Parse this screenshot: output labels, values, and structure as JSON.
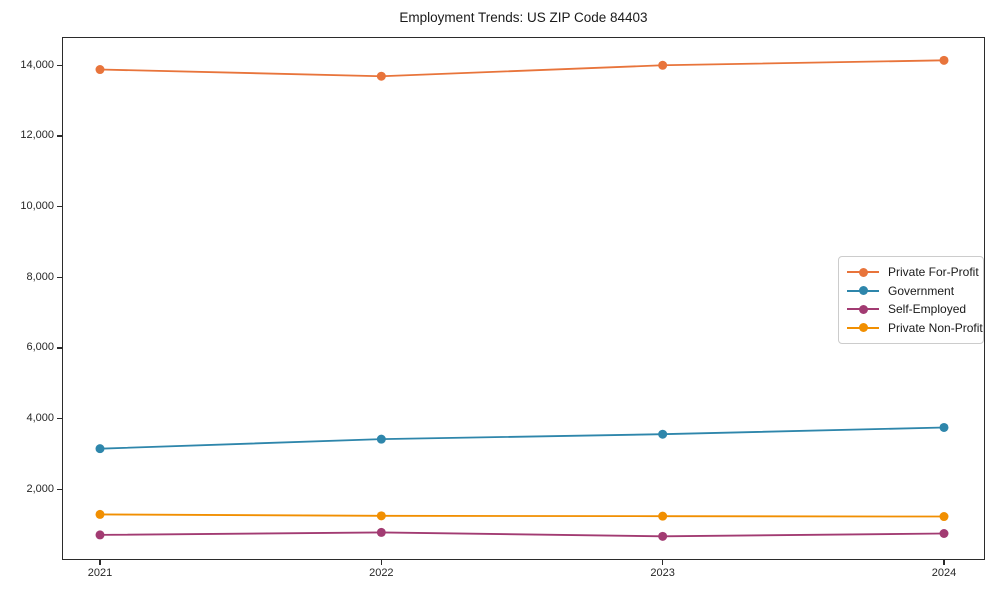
{
  "chart_data": {
    "type": "line",
    "title": "Employment Trends: US ZIP Code 84403",
    "x": [
      2021,
      2022,
      2023,
      2024
    ],
    "xtick_labels": [
      "2021",
      "2022",
      "2023",
      "2024"
    ],
    "series": [
      {
        "name": "Private For-Profit",
        "color": "#E8743B",
        "values": [
          13880,
          13690,
          14000,
          14140
        ]
      },
      {
        "name": "Government",
        "color": "#2E86AB",
        "values": [
          3150,
          3420,
          3560,
          3750
        ]
      },
      {
        "name": "Self-Employed",
        "color": "#A23B72",
        "values": [
          710,
          780,
          670,
          750
        ]
      },
      {
        "name": "Private Non-Profit",
        "color": "#F18F01",
        "values": [
          1290,
          1250,
          1240,
          1230
        ]
      }
    ],
    "ylim": [
      0,
      14800
    ],
    "yticks": [
      2000,
      4000,
      6000,
      8000,
      10000,
      12000,
      14000
    ],
    "ytick_labels": [
      "2,000",
      "4,000",
      "6,000",
      "8,000",
      "10,000",
      "12,000",
      "14,000"
    ],
    "grid": false,
    "marker": "circle",
    "legend_position": "center right",
    "background_color": "#ffffff",
    "spine_color": "#2b2b2b"
  }
}
